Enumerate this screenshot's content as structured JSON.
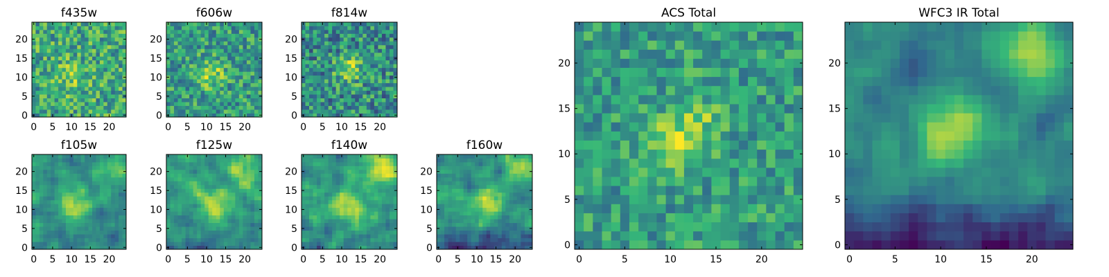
{
  "figure": {
    "colormap": [
      "#440154",
      "#31688e",
      "#35b779",
      "#fde725"
    ],
    "noise_seed": 12345
  },
  "chart_data": [
    {
      "type": "heatmap",
      "title": "f435w",
      "x_ticks": [
        0,
        5,
        10,
        15,
        20
      ],
      "y_ticks": [
        0,
        5,
        10,
        15,
        20
      ],
      "xlim": [
        -0.5,
        24.5
      ],
      "ylim": [
        -0.5,
        24.5
      ],
      "grid": false,
      "grid_size": 25,
      "blobs": [
        {
          "x": 10,
          "y": 10,
          "sigma": 3.0,
          "amp": 0.2
        }
      ],
      "noise": 0.26,
      "smooth": 0,
      "base": 0.6,
      "bottom_dip": 0.0
    },
    {
      "type": "heatmap",
      "title": "f606w",
      "x_ticks": [
        0,
        5,
        10,
        15,
        20
      ],
      "y_ticks": [
        0,
        5,
        10,
        15,
        20
      ],
      "xlim": [
        -0.5,
        24.5
      ],
      "ylim": [
        -0.5,
        24.5
      ],
      "grid": false,
      "grid_size": 25,
      "blobs": [
        {
          "x": 11,
          "y": 11,
          "sigma": 2.5,
          "amp": 0.35
        }
      ],
      "noise": 0.24,
      "smooth": 0,
      "base": 0.55,
      "bottom_dip": 0.0
    },
    {
      "type": "heatmap",
      "title": "f814w",
      "x_ticks": [
        0,
        5,
        10,
        15,
        20
      ],
      "y_ticks": [
        0,
        5,
        10,
        15,
        20
      ],
      "xlim": [
        -0.5,
        24.5
      ],
      "ylim": [
        -0.5,
        24.5
      ],
      "grid": false,
      "grid_size": 25,
      "blobs": [
        {
          "x": 12,
          "y": 12,
          "sigma": 2.5,
          "amp": 0.3
        }
      ],
      "noise": 0.27,
      "smooth": 0,
      "base": 0.5,
      "bottom_dip": 0.0
    },
    {
      "type": "heatmap",
      "title": "f105w",
      "x_ticks": [
        0,
        5,
        10,
        15,
        20
      ],
      "y_ticks": [
        0,
        5,
        10,
        15,
        20
      ],
      "xlim": [
        -0.5,
        24.5
      ],
      "ylim": [
        -0.5,
        24.5
      ],
      "grid": false,
      "grid_size": 25,
      "blobs": [
        {
          "x": 11,
          "y": 12,
          "sigma": 3.0,
          "amp": 0.35
        },
        {
          "x": 21,
          "y": 21,
          "sigma": 2.5,
          "amp": 0.25
        }
      ],
      "noise": 0.22,
      "smooth": 1,
      "base": 0.5,
      "bottom_dip": 0.1
    },
    {
      "type": "heatmap",
      "title": "f125w",
      "x_ticks": [
        0,
        5,
        10,
        15,
        20
      ],
      "y_ticks": [
        0,
        5,
        10,
        15,
        20
      ],
      "xlim": [
        -0.5,
        24.5
      ],
      "ylim": [
        -0.5,
        24.5
      ],
      "grid": false,
      "grid_size": 25,
      "blobs": [
        {
          "x": 11,
          "y": 12,
          "sigma": 3.0,
          "amp": 0.3
        },
        {
          "x": 20,
          "y": 20,
          "sigma": 3.0,
          "amp": 0.3
        }
      ],
      "noise": 0.24,
      "smooth": 1,
      "base": 0.55,
      "bottom_dip": 0.1
    },
    {
      "type": "heatmap",
      "title": "f140w",
      "x_ticks": [
        0,
        5,
        10,
        15,
        20
      ],
      "y_ticks": [
        0,
        5,
        10,
        15,
        20
      ],
      "xlim": [
        -0.5,
        24.5
      ],
      "ylim": [
        -0.5,
        24.5
      ],
      "grid": false,
      "grid_size": 25,
      "blobs": [
        {
          "x": 11,
          "y": 11,
          "sigma": 3.0,
          "amp": 0.35
        },
        {
          "x": 21,
          "y": 21,
          "sigma": 3.0,
          "amp": 0.35
        }
      ],
      "noise": 0.24,
      "smooth": 1,
      "base": 0.55,
      "bottom_dip": 0.1
    },
    {
      "type": "heatmap",
      "title": "f160w",
      "x_ticks": [
        0,
        5,
        10,
        15,
        20
      ],
      "y_ticks": [
        0,
        5,
        10,
        15,
        20
      ],
      "xlim": [
        -0.5,
        24.5
      ],
      "ylim": [
        -0.5,
        24.5
      ],
      "grid": false,
      "grid_size": 25,
      "blobs": [
        {
          "x": 12,
          "y": 12,
          "sigma": 3.0,
          "amp": 0.4
        },
        {
          "x": 21,
          "y": 21,
          "sigma": 3.0,
          "amp": 0.35
        }
      ],
      "noise": 0.22,
      "smooth": 1,
      "base": 0.5,
      "bottom_dip": 0.3
    },
    {
      "type": "heatmap",
      "title": "ACS Total",
      "x_ticks": [
        0,
        5,
        10,
        15,
        20
      ],
      "y_ticks": [
        0,
        5,
        10,
        15,
        20
      ],
      "xlim": [
        -0.5,
        24.5
      ],
      "ylim": [
        -0.5,
        24.5
      ],
      "grid": false,
      "grid_size": 25,
      "blobs": [
        {
          "x": 10,
          "y": 11,
          "sigma": 2.0,
          "amp": 0.35
        },
        {
          "x": 13,
          "y": 14,
          "sigma": 2.0,
          "amp": 0.2
        }
      ],
      "noise": 0.2,
      "smooth": 0,
      "base": 0.55,
      "bottom_dip": 0.0
    },
    {
      "type": "heatmap",
      "title": "WFC3 IR Total",
      "x_ticks": [
        0,
        5,
        10,
        15,
        20
      ],
      "y_ticks": [
        0,
        5,
        10,
        15,
        20
      ],
      "xlim": [
        -0.5,
        24.5
      ],
      "ylim": [
        -0.5,
        24.5
      ],
      "grid": false,
      "grid_size": 25,
      "blobs": [
        {
          "x": 11,
          "y": 12,
          "sigma": 2.5,
          "amp": 0.45
        },
        {
          "x": 20,
          "y": 21,
          "sigma": 2.5,
          "amp": 0.45
        }
      ],
      "noise": 0.16,
      "smooth": 1,
      "base": 0.45,
      "bottom_dip": 0.35
    }
  ]
}
